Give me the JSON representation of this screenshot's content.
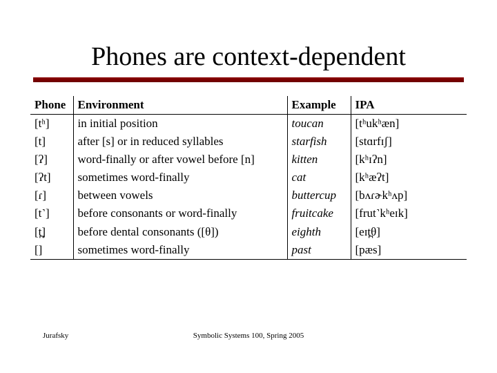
{
  "colors": {
    "rule_bg": "#8b0000",
    "page_bg": "#ffffff",
    "text": "#000000",
    "border": "#000000"
  },
  "typography": {
    "title_fontsize": 38,
    "table_fontsize": 17,
    "footer_fontsize": 11,
    "font_family": "Times New Roman"
  },
  "title": "Phones are context-dependent",
  "table": {
    "columns": [
      "Phone",
      "Environment",
      "Example",
      "IPA"
    ],
    "rows": [
      {
        "phone": "[tʰ]",
        "env": "in initial position",
        "example": "toucan",
        "ipa": "[tʰukʰæn]"
      },
      {
        "phone": "[t]",
        "env": "after [s] or in reduced syllables",
        "example": "starfish",
        "ipa": "[stɑrfɪʃ]"
      },
      {
        "phone": "[ʔ]",
        "env": "word-finally or after vowel before [n]",
        "example": "kitten",
        "ipa": "[kʰɪʔn]"
      },
      {
        "phone": "[ʔt]",
        "env": "sometimes word-finally",
        "example": "cat",
        "ipa": "[kʰæʔt]"
      },
      {
        "phone": "[ɾ]",
        "env": "between vowels",
        "example": "buttercup",
        "ipa": "[bʌɾɚkʰʌp]"
      },
      {
        "phone": "[t˺]",
        "env": "before consonants or word-finally",
        "example": "fruitcake",
        "ipa": "[frut˺kʰeɪk]"
      },
      {
        "phone": "[t̪]",
        "env": "before dental consonants ([θ])",
        "example": "eighth",
        "ipa": "[eɪt̪θ]"
      },
      {
        "phone": "[]",
        "env": "sometimes word-finally",
        "example": "past",
        "ipa": "[pæs]"
      }
    ]
  },
  "footer": {
    "left": "Jurafsky",
    "center": "Symbolic Systems 100, Spring 2005"
  }
}
